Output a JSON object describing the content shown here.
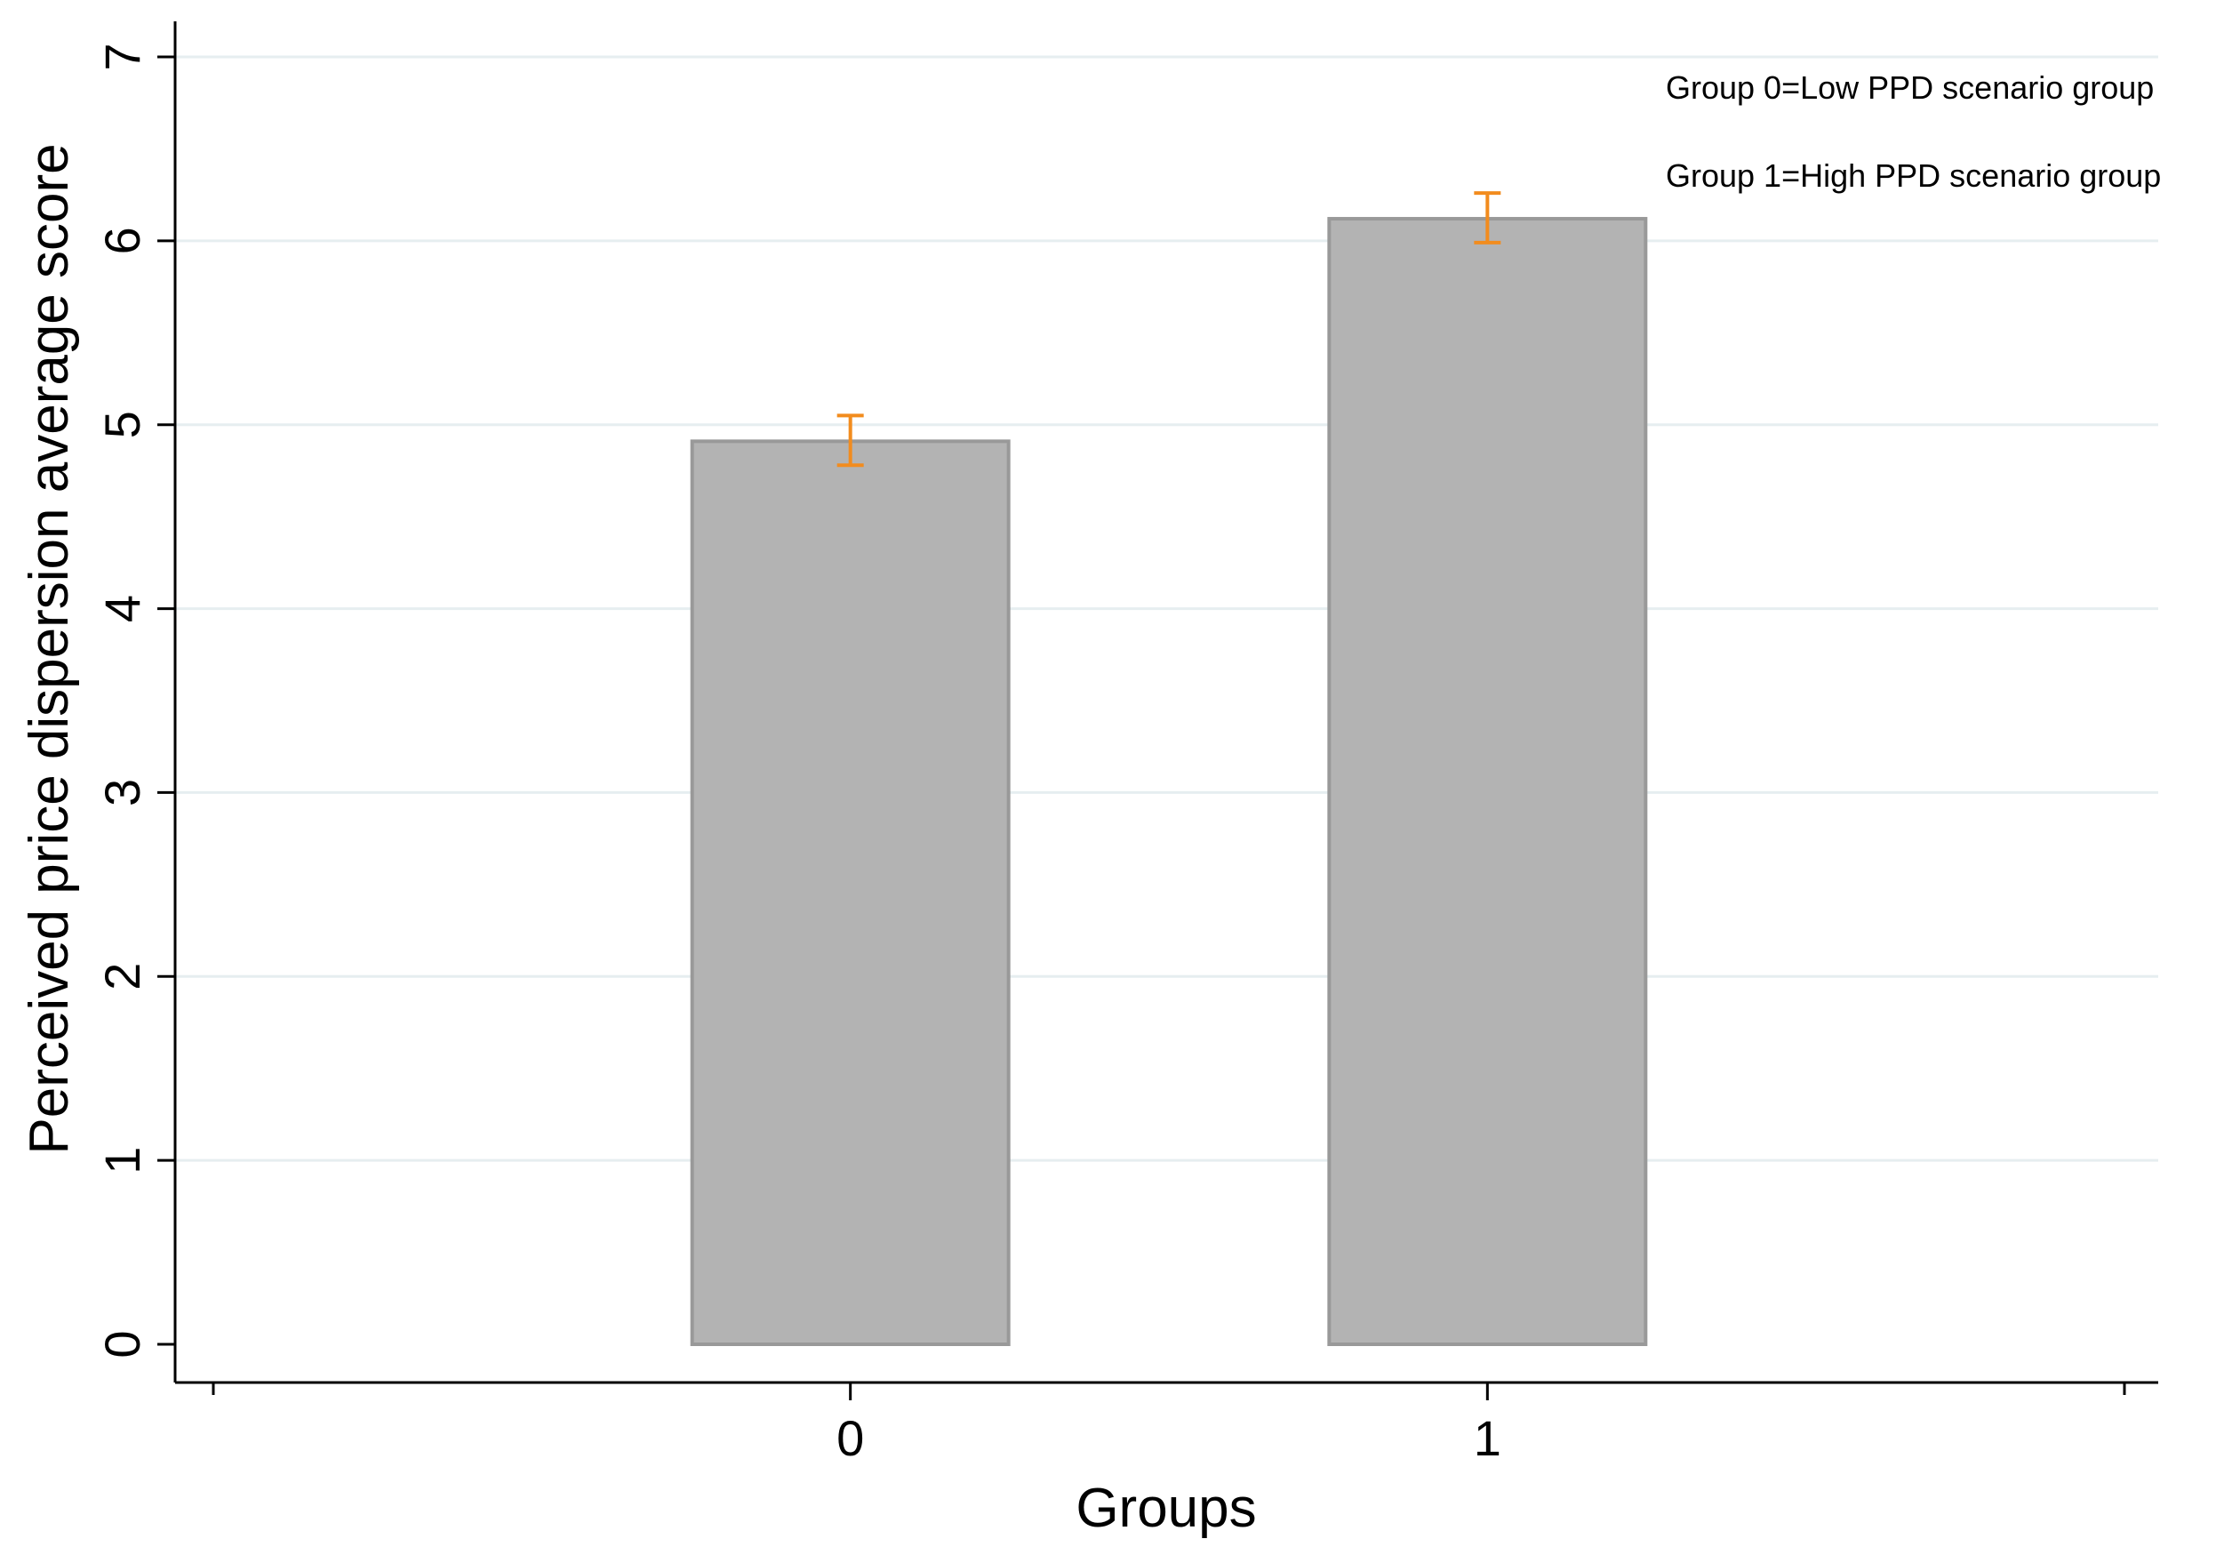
{
  "chart_data": {
    "type": "bar",
    "categories": [
      "0",
      "1"
    ],
    "values": [
      4.91,
      6.12
    ],
    "error_bars": [
      {
        "low": 4.78,
        "high": 5.05
      },
      {
        "low": 5.99,
        "high": 6.26
      }
    ],
    "xlabel": "Groups",
    "ylabel": "Perceived price dispersion average score",
    "ylim": [
      0,
      7
    ],
    "yticks": [
      "0",
      "1",
      "2",
      "3",
      "4",
      "5",
      "6",
      "7"
    ],
    "grid": true,
    "notes": [
      "Group 0=Low PPD scenario group",
      "Group 1=High PPD scenario group"
    ],
    "colors": {
      "bar_fill": "#b3b3b3",
      "bar_stroke": "#999999",
      "error_bar": "#f28c1e",
      "grid": "#e6eef0",
      "axis": "#000000"
    }
  }
}
